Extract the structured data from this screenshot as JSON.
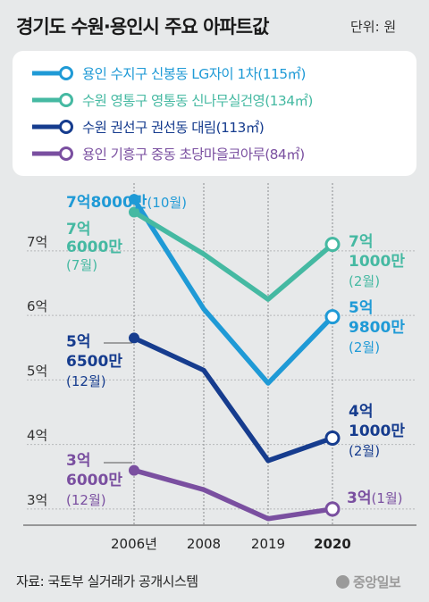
{
  "title": "경기도 수원·용인시 주요 아파트값",
  "unit": "단위: 원",
  "source": "자료: 국토부 실거래가 공개시스템",
  "logo_text": "중앙일보",
  "chart_data": {
    "type": "line",
    "x": [
      "2006년",
      "2008",
      "2019",
      "2020"
    ],
    "x_bold_last": true,
    "ylim": [
      2.75,
      8.05
    ],
    "y_ticks": [
      3,
      4,
      5,
      6,
      7
    ],
    "y_tick_labels": [
      "3억",
      "4억",
      "5억",
      "6억",
      "7억"
    ],
    "grid": true,
    "legend_position": "top",
    "series": [
      {
        "name": "용인 수지구 신봉동 LG자이 1차(115㎡)",
        "color": "#1f9ad6",
        "values": [
          7.8,
          6.1,
          4.95,
          5.98
        ],
        "start_label": [
          "7억8000만",
          "(10월)"
        ],
        "end_label": [
          "5억",
          "9800만",
          "(2월)"
        ]
      },
      {
        "name": "수원 영통구 영통동 신나무실건영(134㎡)",
        "color": "#45b9a2",
        "values": [
          7.6,
          6.95,
          6.25,
          7.1
        ],
        "start_label": [
          "7억",
          "6000만",
          "(7월)"
        ],
        "end_label": [
          "7억",
          "1000만",
          "(2월)"
        ]
      },
      {
        "name": "수원 권선구 권선동 대림(113㎡)",
        "color": "#163c8e",
        "values": [
          5.65,
          5.15,
          3.75,
          4.1
        ],
        "start_label": [
          "5억",
          "6500만",
          "(12월)"
        ],
        "end_label": [
          "4억",
          "1000만",
          "(2월)"
        ]
      },
      {
        "name": "용인 기흥구 중동 초당마을코아루(84㎡)",
        "color": "#7a4fa0",
        "values": [
          3.6,
          3.3,
          2.85,
          3.0
        ],
        "start_label": [
          "3억",
          "6000만",
          "(12월)"
        ],
        "end_label": [
          "3억",
          "(1월)"
        ]
      }
    ]
  }
}
